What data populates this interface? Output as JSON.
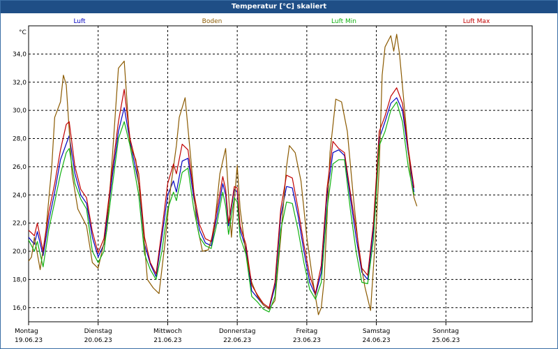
{
  "window": {
    "title": "Temperatur [°C] skaliert"
  },
  "chart_data": {
    "type": "line",
    "title": "Temperatur [°C] skaliert",
    "ylabel": "°C",
    "ylim": [
      15.0,
      36.0
    ],
    "yticks": [
      "16,0",
      "18,0",
      "20,0",
      "22,0",
      "24,0",
      "26,0",
      "28,0",
      "30,0",
      "32,0",
      "34,0"
    ],
    "ytick_values": [
      16,
      18,
      20,
      22,
      24,
      26,
      28,
      30,
      32,
      34
    ],
    "xlim": [
      0,
      168
    ],
    "xticks": [
      {
        "day": "Montag",
        "date": "19.06.23",
        "h": 0
      },
      {
        "day": "Dienstag",
        "date": "20.06.23",
        "h": 24
      },
      {
        "day": "Mittwoch",
        "date": "21.06.23",
        "h": 48
      },
      {
        "day": "Donnerstag",
        "date": "22.06.23",
        "h": 72
      },
      {
        "day": "Freitag",
        "date": "23.06.23",
        "h": 96
      },
      {
        "day": "Samstag",
        "date": "24.06.23",
        "h": 120
      },
      {
        "day": "Sonntag",
        "date": "25.06.23",
        "h": 144
      }
    ],
    "grid": true,
    "legend_position": "top",
    "series": [
      {
        "name": "Luft",
        "color": "#0000c0",
        "points": [
          [
            0,
            21.0
          ],
          [
            2,
            20.5
          ],
          [
            3,
            21.4
          ],
          [
            5,
            19.7
          ],
          [
            7,
            22.2
          ],
          [
            9,
            24.2
          ],
          [
            11,
            26.5
          ],
          [
            14,
            28.2
          ],
          [
            16,
            25.5
          ],
          [
            18,
            24.0
          ],
          [
            20,
            23.4
          ],
          [
            22,
            21.0
          ],
          [
            24,
            19.6
          ],
          [
            26,
            20.5
          ],
          [
            29,
            25.5
          ],
          [
            31,
            28.5
          ],
          [
            33,
            30.2
          ],
          [
            35,
            27.8
          ],
          [
            38,
            24.8
          ],
          [
            40,
            20.5
          ],
          [
            42,
            19.1
          ],
          [
            44,
            18.2
          ],
          [
            46,
            21.0
          ],
          [
            48,
            24.0
          ],
          [
            50,
            25.0
          ],
          [
            51,
            24.2
          ],
          [
            53,
            26.4
          ],
          [
            55,
            26.6
          ],
          [
            57,
            23.8
          ],
          [
            59,
            21.5
          ],
          [
            61,
            20.6
          ],
          [
            63,
            20.4
          ],
          [
            65,
            22.5
          ],
          [
            67,
            24.8
          ],
          [
            68,
            24.0
          ],
          [
            69,
            21.8
          ],
          [
            71,
            24.4
          ],
          [
            72,
            24.2
          ],
          [
            73,
            21.5
          ],
          [
            75,
            20.2
          ],
          [
            77,
            17.2
          ],
          [
            79,
            16.7
          ],
          [
            81,
            16.2
          ],
          [
            83,
            15.9
          ],
          [
            85,
            17.5
          ],
          [
            87,
            22.5
          ],
          [
            89,
            24.6
          ],
          [
            91,
            24.5
          ],
          [
            93,
            22.5
          ],
          [
            95,
            20.0
          ],
          [
            97,
            17.8
          ],
          [
            99,
            16.9
          ],
          [
            101,
            18.5
          ],
          [
            103,
            24.0
          ],
          [
            105,
            27.0
          ],
          [
            107,
            27.2
          ],
          [
            109,
            26.8
          ],
          [
            111,
            23.8
          ],
          [
            113,
            21.0
          ],
          [
            115,
            18.5
          ],
          [
            117,
            18.0
          ],
          [
            119,
            21.5
          ],
          [
            121,
            28.0
          ],
          [
            123,
            29.2
          ],
          [
            125,
            30.5
          ],
          [
            127,
            30.9
          ],
          [
            129,
            30.0
          ],
          [
            131,
            27.0
          ],
          [
            133,
            24.2
          ]
        ]
      },
      {
        "name": "Boden",
        "color": "#8b5a00",
        "points": [
          [
            0,
            19.3
          ],
          [
            1,
            19.6
          ],
          [
            2,
            21.0
          ],
          [
            4,
            18.7
          ],
          [
            6,
            21.5
          ],
          [
            8,
            26.0
          ],
          [
            9,
            29.5
          ],
          [
            11,
            30.6
          ],
          [
            12,
            32.5
          ],
          [
            13,
            31.8
          ],
          [
            15,
            25.5
          ],
          [
            17,
            23.0
          ],
          [
            20,
            21.8
          ],
          [
            22,
            19.2
          ],
          [
            24,
            18.8
          ],
          [
            27,
            21.5
          ],
          [
            29,
            27.0
          ],
          [
            31,
            33.0
          ],
          [
            33,
            33.5
          ],
          [
            35,
            27.5
          ],
          [
            37,
            26.5
          ],
          [
            39,
            23.0
          ],
          [
            41,
            18.0
          ],
          [
            43,
            17.4
          ],
          [
            45,
            17.0
          ],
          [
            47,
            20.5
          ],
          [
            49,
            24.5
          ],
          [
            51,
            27.5
          ],
          [
            52,
            29.5
          ],
          [
            54,
            30.9
          ],
          [
            56,
            26.5
          ],
          [
            58,
            22.0
          ],
          [
            60,
            20.0
          ],
          [
            62,
            20.1
          ],
          [
            64,
            21.5
          ],
          [
            66,
            25.5
          ],
          [
            68,
            27.3
          ],
          [
            69,
            24.0
          ],
          [
            70,
            21.0
          ],
          [
            72,
            26.1
          ],
          [
            73,
            23.0
          ],
          [
            75,
            19.8
          ],
          [
            77,
            17.8
          ],
          [
            79,
            16.8
          ],
          [
            81,
            16.2
          ],
          [
            83,
            15.9
          ],
          [
            85,
            16.5
          ],
          [
            87,
            21.0
          ],
          [
            89,
            26.0
          ],
          [
            90,
            27.5
          ],
          [
            92,
            27.0
          ],
          [
            94,
            25.0
          ],
          [
            96,
            21.0
          ],
          [
            98,
            18.0
          ],
          [
            100,
            15.5
          ],
          [
            101,
            16.0
          ],
          [
            102,
            18.0
          ],
          [
            104,
            27.0
          ],
          [
            106,
            30.8
          ],
          [
            108,
            30.6
          ],
          [
            110,
            28.5
          ],
          [
            112,
            24.0
          ],
          [
            114,
            20.0
          ],
          [
            116,
            17.5
          ],
          [
            118,
            15.8
          ],
          [
            120,
            22.0
          ],
          [
            121,
            26.0
          ],
          [
            122,
            32.5
          ],
          [
            123,
            34.5
          ],
          [
            125,
            35.3
          ],
          [
            126,
            34.2
          ],
          [
            127,
            35.4
          ],
          [
            128,
            34.0
          ],
          [
            130,
            29.5
          ],
          [
            132,
            25.0
          ],
          [
            133,
            23.8
          ],
          [
            134,
            23.2
          ]
        ]
      },
      {
        "name": "Luft Min",
        "color": "#10b010",
        "points": [
          [
            0,
            20.8
          ],
          [
            2,
            20.0
          ],
          [
            3,
            20.7
          ],
          [
            5,
            18.9
          ],
          [
            7,
            21.6
          ],
          [
            9,
            23.5
          ],
          [
            11,
            25.5
          ],
          [
            13,
            27.0
          ],
          [
            14,
            27.3
          ],
          [
            16,
            24.8
          ],
          [
            18,
            23.7
          ],
          [
            20,
            23.0
          ],
          [
            22,
            20.0
          ],
          [
            24,
            19.2
          ],
          [
            26,
            20.0
          ],
          [
            29,
            24.8
          ],
          [
            31,
            28.0
          ],
          [
            33,
            29.2
          ],
          [
            35,
            27.5
          ],
          [
            38,
            24.0
          ],
          [
            40,
            19.8
          ],
          [
            42,
            18.7
          ],
          [
            44,
            18.0
          ],
          [
            46,
            20.0
          ],
          [
            48,
            23.0
          ],
          [
            50,
            24.2
          ],
          [
            51,
            23.6
          ],
          [
            53,
            25.6
          ],
          [
            55,
            25.9
          ],
          [
            57,
            23.0
          ],
          [
            59,
            21.0
          ],
          [
            61,
            20.4
          ],
          [
            63,
            20.2
          ],
          [
            65,
            22.0
          ],
          [
            67,
            24.2
          ],
          [
            68,
            23.2
          ],
          [
            69,
            21.2
          ],
          [
            71,
            23.8
          ],
          [
            72,
            23.5
          ],
          [
            73,
            21.0
          ],
          [
            75,
            19.8
          ],
          [
            77,
            16.8
          ],
          [
            79,
            16.4
          ],
          [
            81,
            15.9
          ],
          [
            83,
            15.7
          ],
          [
            85,
            16.8
          ],
          [
            87,
            21.5
          ],
          [
            89,
            23.5
          ],
          [
            91,
            23.4
          ],
          [
            93,
            21.5
          ],
          [
            95,
            19.2
          ],
          [
            97,
            17.3
          ],
          [
            99,
            16.6
          ],
          [
            101,
            17.8
          ],
          [
            103,
            23.0
          ],
          [
            105,
            26.2
          ],
          [
            107,
            26.5
          ],
          [
            109,
            26.5
          ],
          [
            111,
            23.0
          ],
          [
            113,
            20.0
          ],
          [
            115,
            17.8
          ],
          [
            117,
            17.7
          ],
          [
            119,
            20.8
          ],
          [
            121,
            27.5
          ],
          [
            123,
            28.5
          ],
          [
            125,
            30.0
          ],
          [
            127,
            30.6
          ],
          [
            129,
            29.2
          ],
          [
            131,
            26.0
          ],
          [
            133,
            24.0
          ]
        ]
      },
      {
        "name": "Luft Max",
        "color": "#c00000",
        "points": [
          [
            0,
            21.5
          ],
          [
            2,
            21.1
          ],
          [
            3,
            22.0
          ],
          [
            5,
            20.0
          ],
          [
            7,
            22.8
          ],
          [
            9,
            24.8
          ],
          [
            11,
            27.2
          ],
          [
            13,
            29.0
          ],
          [
            14,
            29.2
          ],
          [
            16,
            26.0
          ],
          [
            18,
            24.4
          ],
          [
            20,
            23.8
          ],
          [
            22,
            21.4
          ],
          [
            24,
            19.9
          ],
          [
            26,
            20.9
          ],
          [
            29,
            26.0
          ],
          [
            31,
            29.2
          ],
          [
            33,
            31.5
          ],
          [
            35,
            28.0
          ],
          [
            38,
            25.5
          ],
          [
            40,
            21.0
          ],
          [
            42,
            19.2
          ],
          [
            44,
            18.4
          ],
          [
            46,
            21.5
          ],
          [
            48,
            24.8
          ],
          [
            50,
            26.2
          ],
          [
            51,
            25.5
          ],
          [
            53,
            27.6
          ],
          [
            55,
            27.2
          ],
          [
            57,
            24.2
          ],
          [
            59,
            21.9
          ],
          [
            61,
            20.9
          ],
          [
            63,
            20.7
          ],
          [
            65,
            23.0
          ],
          [
            67,
            25.3
          ],
          [
            68,
            24.4
          ],
          [
            69,
            22.0
          ],
          [
            71,
            24.6
          ],
          [
            72,
            24.5
          ],
          [
            73,
            21.8
          ],
          [
            75,
            20.5
          ],
          [
            77,
            17.6
          ],
          [
            79,
            16.9
          ],
          [
            81,
            16.3
          ],
          [
            83,
            16.0
          ],
          [
            85,
            17.8
          ],
          [
            87,
            23.0
          ],
          [
            89,
            25.4
          ],
          [
            91,
            25.2
          ],
          [
            93,
            23.0
          ],
          [
            95,
            20.5
          ],
          [
            97,
            18.3
          ],
          [
            99,
            17.0
          ],
          [
            101,
            19.0
          ],
          [
            103,
            24.5
          ],
          [
            105,
            27.8
          ],
          [
            107,
            27.3
          ],
          [
            109,
            27.0
          ],
          [
            111,
            24.2
          ],
          [
            113,
            21.6
          ],
          [
            115,
            18.8
          ],
          [
            117,
            18.3
          ],
          [
            119,
            22.0
          ],
          [
            121,
            28.5
          ],
          [
            123,
            29.6
          ],
          [
            125,
            31.0
          ],
          [
            127,
            31.6
          ],
          [
            129,
            30.5
          ],
          [
            131,
            27.3
          ],
          [
            133,
            24.5
          ]
        ]
      }
    ]
  }
}
